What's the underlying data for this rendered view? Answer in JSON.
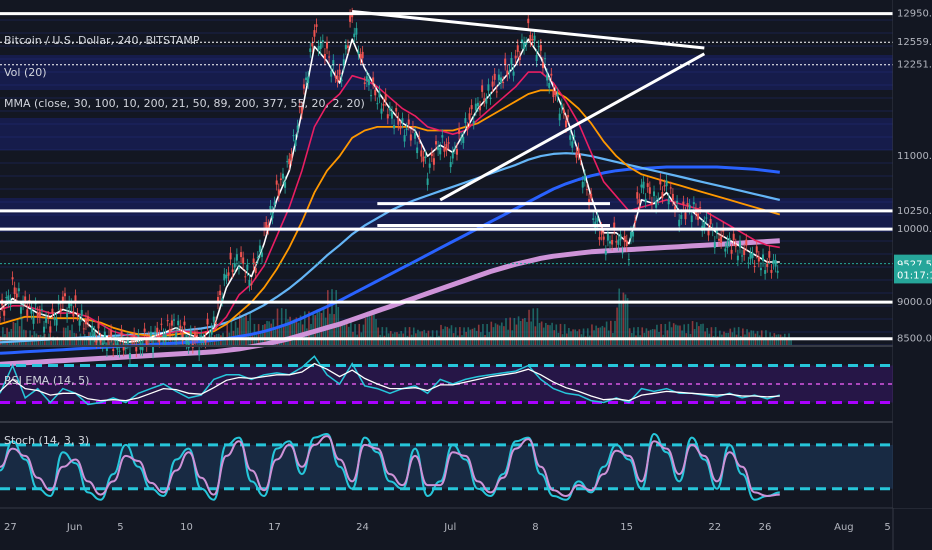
{
  "chart_data": {
    "type": "line",
    "title": "Bitcoin / U.S. Dollar, 240, BITSTAMP",
    "indicators": [
      "Vol (20)",
      "MMA (close, 30, 100, 10, 200, 21, 50, 89, 200, 377, 55, 20, 2, 20)"
    ],
    "rsi_label": "RSI EMA (14, 5)",
    "stoch_label": "Stoch (14, 3, 3)",
    "price_ticks": [
      {
        "label": "12950.00",
        "value": 12950
      },
      {
        "label": "12559.21",
        "value": 12559
      },
      {
        "label": "12251.42",
        "value": 12251
      },
      {
        "label": "11000.00",
        "value": 11000
      },
      {
        "label": "10250.00",
        "value": 10250
      },
      {
        "label": "10000.00",
        "value": 10000
      },
      {
        "label": "9000.00",
        "value": 9000
      },
      {
        "label": "8500.00",
        "value": 8500
      }
    ],
    "current_price": {
      "label": "9527.58",
      "value": 9527.58,
      "color": "#26a69a"
    },
    "countdown": {
      "label": "01:17:11",
      "value": 9380,
      "color": "#26a69a"
    },
    "date_ticks": [
      {
        "label": "27",
        "x": 0
      },
      {
        "label": "Jun",
        "x": 5
      },
      {
        "label": "5",
        "x": 9
      },
      {
        "label": "10",
        "x": 14
      },
      {
        "label": "17",
        "x": 21
      },
      {
        "label": "24",
        "x": 28
      },
      {
        "label": "Jul",
        "x": 35
      },
      {
        "label": "8",
        "x": 42
      },
      {
        "label": "15",
        "x": 49
      },
      {
        "label": "22",
        "x": 56
      },
      {
        "label": "26",
        "x": 60
      },
      {
        "label": "Aug",
        "x": 66
      },
      {
        "label": "5",
        "x": 70
      }
    ],
    "x_range": [
      0,
      71
    ],
    "price_range": [
      8400,
      13000
    ],
    "rsi_range": [
      10,
      90
    ],
    "stoch_range": [
      -5,
      110
    ],
    "horizontal_levels": [
      12950,
      12559,
      12251,
      10250,
      10000,
      9000,
      8500
    ],
    "triangle_upper": {
      "x": [
        28,
        56
      ],
      "y": [
        12980,
        12480
      ]
    },
    "triangle_lower": {
      "x": [
        35,
        56
      ],
      "y": [
        10400,
        12400
      ]
    },
    "price_series": {
      "name": "",
      "x": [
        0,
        1,
        2,
        3,
        4,
        5,
        6,
        7,
        8,
        9,
        10,
        11,
        12,
        13,
        14,
        15,
        16,
        17,
        18,
        19,
        20,
        21,
        22,
        23,
        24,
        25,
        26,
        27,
        28,
        29,
        30,
        31,
        32,
        33,
        34,
        35,
        36,
        37,
        38,
        39,
        40,
        41,
        42,
        43,
        44,
        45,
        46,
        47,
        48,
        49,
        50,
        51,
        52,
        53,
        54,
        55,
        56,
        57,
        58,
        59,
        60,
        61,
        62
      ],
      "y": [
        8800,
        9200,
        8950,
        8850,
        8700,
        9000,
        8900,
        8650,
        8500,
        8450,
        8400,
        8450,
        8500,
        8600,
        8700,
        8500,
        8450,
        8700,
        9400,
        9600,
        9300,
        9900,
        10500,
        10900,
        11700,
        12700,
        12400,
        12000,
        12900,
        12100,
        11800,
        11600,
        11400,
        11300,
        10800,
        11200,
        11000,
        11400,
        11700,
        11900,
        12100,
        12300,
        12700,
        12400,
        11900,
        11500,
        11000,
        10300,
        9800,
        9900,
        9700,
        10600,
        10400,
        10600,
        10200,
        10300,
        10100,
        9900,
        9800,
        9700,
        9600,
        9500,
        9550
      ]
    },
    "ma_series": [
      {
        "name": "",
        "color": "#ffffff",
        "width": 1.6,
        "y": [
          8900,
          9050,
          8950,
          8850,
          8800,
          8900,
          8850,
          8700,
          8550,
          8500,
          8450,
          8470,
          8520,
          8580,
          8650,
          8560,
          8500,
          8650,
          9200,
          9500,
          9350,
          9800,
          10400,
          10800,
          11600,
          12500,
          12300,
          12000,
          12600,
          12200,
          11900,
          11650,
          11450,
          11350,
          11000,
          11150,
          11050,
          11350,
          11650,
          11850,
          12050,
          12250,
          12600,
          12350,
          11950,
          11550,
          11050,
          10450,
          9950,
          9950,
          9800,
          10400,
          10350,
          10500,
          10250,
          10250,
          10100,
          9950,
          9850,
          9750,
          9650,
          9550,
          9550
        ]
      },
      {
        "name": "",
        "color": "#e91e63",
        "width": 1.6,
        "y": [
          8900,
          8950,
          8950,
          8900,
          8850,
          8850,
          8850,
          8800,
          8700,
          8600,
          8550,
          8520,
          8520,
          8550,
          8600,
          8600,
          8580,
          8620,
          8800,
          9100,
          9250,
          9500,
          9900,
          10300,
          10800,
          11400,
          11700,
          11850,
          12100,
          12050,
          11950,
          11800,
          11650,
          11550,
          11400,
          11350,
          11300,
          11350,
          11500,
          11650,
          11800,
          11950,
          12150,
          12150,
          12000,
          11750,
          11450,
          11050,
          10650,
          10450,
          10250,
          10300,
          10350,
          10400,
          10350,
          10300,
          10250,
          10150,
          10050,
          9950,
          9850,
          9780,
          9750
        ]
      },
      {
        "name": "",
        "color": "#ff9800",
        "width": 1.8,
        "y": [
          8700,
          8750,
          8800,
          8800,
          8780,
          8780,
          8780,
          8760,
          8720,
          8650,
          8600,
          8560,
          8540,
          8540,
          8560,
          8580,
          8580,
          8600,
          8700,
          8850,
          9000,
          9200,
          9450,
          9750,
          10100,
          10500,
          10800,
          11000,
          11250,
          11350,
          11400,
          11400,
          11400,
          11400,
          11350,
          11350,
          11350,
          11400,
          11450,
          11550,
          11650,
          11750,
          11850,
          11900,
          11900,
          11800,
          11650,
          11450,
          11200,
          11000,
          10850,
          10750,
          10700,
          10650,
          10600,
          10550,
          10500,
          10450,
          10400,
          10350,
          10300,
          10250,
          10200
        ]
      },
      {
        "name": "",
        "color": "#64b5f6",
        "width": 2.2,
        "y": [
          8450,
          8460,
          8470,
          8480,
          8490,
          8500,
          8510,
          8520,
          8530,
          8540,
          8550,
          8560,
          8570,
          8580,
          8600,
          8620,
          8640,
          8670,
          8720,
          8790,
          8870,
          8960,
          9070,
          9190,
          9330,
          9480,
          9640,
          9780,
          9930,
          10050,
          10150,
          10250,
          10330,
          10400,
          10460,
          10520,
          10580,
          10640,
          10700,
          10760,
          10820,
          10880,
          10950,
          11000,
          11030,
          11040,
          11030,
          11000,
          10960,
          10920,
          10880,
          10840,
          10800,
          10760,
          10720,
          10680,
          10640,
          10600,
          10560,
          10520,
          10480,
          10440,
          10400
        ]
      },
      {
        "name": "",
        "color": "#2962ff",
        "width": 3,
        "y": [
          8300,
          8310,
          8320,
          8330,
          8340,
          8350,
          8360,
          8370,
          8380,
          8390,
          8400,
          8410,
          8420,
          8430,
          8440,
          8450,
          8460,
          8480,
          8500,
          8530,
          8560,
          8600,
          8650,
          8710,
          8780,
          8860,
          8940,
          9020,
          9110,
          9200,
          9290,
          9380,
          9470,
          9560,
          9650,
          9740,
          9830,
          9920,
          10010,
          10100,
          10190,
          10280,
          10370,
          10460,
          10550,
          10620,
          10680,
          10730,
          10770,
          10800,
          10820,
          10830,
          10840,
          10850,
          10850,
          10850,
          10850,
          10850,
          10840,
          10830,
          10820,
          10800,
          10780
        ]
      },
      {
        "name": "",
        "color": "#ce93d8",
        "width": 5,
        "y": [
          8150,
          8160,
          8170,
          8180,
          8190,
          8200,
          8210,
          8220,
          8230,
          8240,
          8250,
          8260,
          8270,
          8280,
          8290,
          8300,
          8310,
          8320,
          8340,
          8360,
          8390,
          8420,
          8460,
          8500,
          8550,
          8600,
          8650,
          8700,
          8760,
          8820,
          8880,
          8940,
          9000,
          9060,
          9120,
          9180,
          9240,
          9300,
          9360,
          9420,
          9470,
          9520,
          9560,
          9600,
          9630,
          9650,
          9670,
          9690,
          9700,
          9710,
          9720,
          9730,
          9740,
          9750,
          9760,
          9770,
          9780,
          9790,
          9800,
          9810,
          9820,
          9830,
          9840
        ]
      }
    ],
    "rsi_upper": 70,
    "rsi_lower": 30,
    "rsi_mid": 50,
    "rsi_series": {
      "name": "",
      "color": "#26c6da",
      "y": [
        40,
        70,
        35,
        45,
        30,
        45,
        40,
        28,
        30,
        35,
        30,
        40,
        45,
        50,
        42,
        35,
        38,
        55,
        60,
        60,
        55,
        60,
        62,
        60,
        68,
        80,
        60,
        50,
        72,
        48,
        45,
        40,
        45,
        48,
        40,
        55,
        50,
        55,
        58,
        60,
        62,
        64,
        70,
        55,
        45,
        40,
        38,
        32,
        30,
        35,
        30,
        45,
        42,
        45,
        40,
        40,
        38,
        36,
        40,
        35,
        38,
        34,
        38
      ]
    },
    "rsi_ema": {
      "name": "",
      "color": "#ffffff",
      "y": [
        42,
        55,
        45,
        43,
        38,
        40,
        40,
        34,
        32,
        33,
        32,
        35,
        40,
        45,
        44,
        40,
        39,
        46,
        54,
        57,
        56,
        58,
        60,
        60,
        63,
        72,
        66,
        58,
        65,
        56,
        50,
        45,
        45,
        46,
        43,
        49,
        49,
        52,
        55,
        58,
        60,
        62,
        66,
        60,
        52,
        46,
        42,
        37,
        33,
        34,
        32,
        38,
        40,
        42,
        41,
        40,
        39,
        38,
        39,
        37,
        37,
        36,
        37
      ]
    },
    "stoch_upper": 80,
    "stoch_lower": 20,
    "stoch_k": {
      "name": "",
      "color": "#26c6da",
      "y": [
        45,
        85,
        60,
        20,
        10,
        70,
        55,
        15,
        5,
        40,
        80,
        50,
        20,
        10,
        60,
        75,
        20,
        5,
        80,
        90,
        30,
        10,
        75,
        85,
        40,
        90,
        95,
        50,
        20,
        90,
        70,
        30,
        20,
        75,
        10,
        30,
        80,
        60,
        20,
        10,
        40,
        85,
        90,
        40,
        10,
        5,
        30,
        15,
        50,
        80,
        60,
        20,
        95,
        70,
        30,
        90,
        60,
        20,
        80,
        40,
        5,
        10,
        15
      ]
    },
    "stoch_d": {
      "name": "",
      "color": "#ce93d8",
      "y": [
        50,
        75,
        65,
        35,
        18,
        50,
        60,
        30,
        12,
        30,
        65,
        58,
        28,
        15,
        45,
        70,
        35,
        12,
        65,
        85,
        45,
        18,
        60,
        80,
        50,
        80,
        92,
        60,
        30,
        80,
        75,
        40,
        25,
        65,
        25,
        25,
        70,
        65,
        30,
        15,
        35,
        75,
        88,
        50,
        18,
        10,
        25,
        18,
        40,
        72,
        65,
        30,
        85,
        75,
        40,
        80,
        65,
        30,
        70,
        50,
        15,
        10,
        12
      ]
    },
    "volume": [
      30,
      45,
      25,
      20,
      15,
      35,
      20,
      25,
      10,
      20,
      15,
      12,
      18,
      25,
      30,
      20,
      15,
      22,
      40,
      55,
      35,
      45,
      60,
      50,
      55,
      65,
      90,
      40,
      35,
      60,
      30,
      25,
      30,
      28,
      25,
      35,
      30,
      32,
      35,
      40,
      45,
      50,
      60,
      40,
      35,
      30,
      28,
      35,
      40,
      95,
      30,
      30,
      35,
      40,
      35,
      40,
      30,
      25,
      30,
      28,
      25,
      22,
      20
    ],
    "volume_colors": [
      "#26a69a",
      "#ef5350"
    ]
  }
}
